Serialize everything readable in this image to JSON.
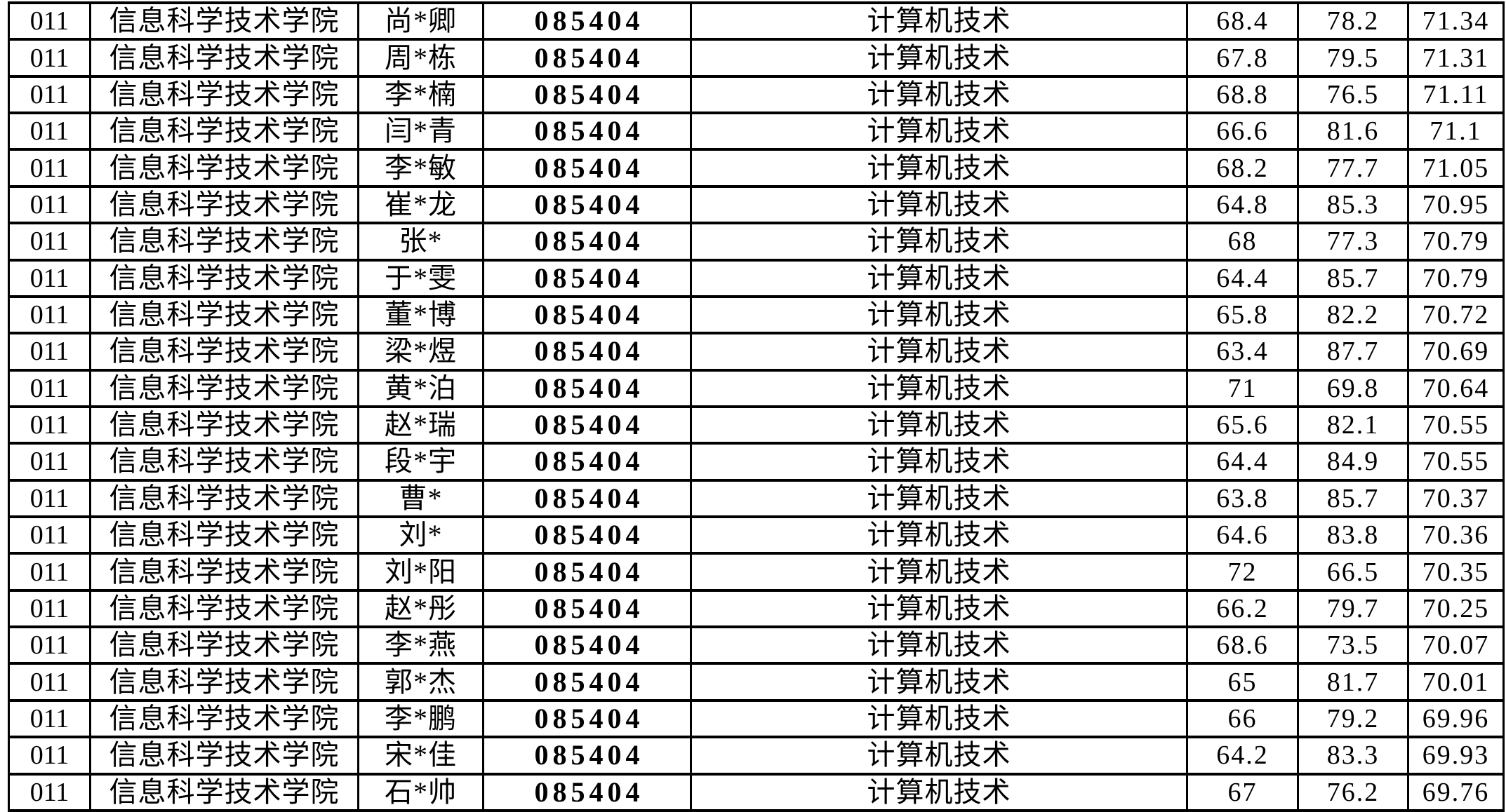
{
  "table": {
    "rows": [
      [
        "011",
        "信息科学技术学院",
        "尚*卿",
        "085404",
        "计算机技术",
        "68.4",
        "78.2",
        "71.34"
      ],
      [
        "011",
        "信息科学技术学院",
        "周*栋",
        "085404",
        "计算机技术",
        "67.8",
        "79.5",
        "71.31"
      ],
      [
        "011",
        "信息科学技术学院",
        "李*楠",
        "085404",
        "计算机技术",
        "68.8",
        "76.5",
        "71.11"
      ],
      [
        "011",
        "信息科学技术学院",
        "闫*青",
        "085404",
        "计算机技术",
        "66.6",
        "81.6",
        "71.1"
      ],
      [
        "011",
        "信息科学技术学院",
        "李*敏",
        "085404",
        "计算机技术",
        "68.2",
        "77.7",
        "71.05"
      ],
      [
        "011",
        "信息科学技术学院",
        "崔*龙",
        "085404",
        "计算机技术",
        "64.8",
        "85.3",
        "70.95"
      ],
      [
        "011",
        "信息科学技术学院",
        "张*",
        "085404",
        "计算机技术",
        "68",
        "77.3",
        "70.79"
      ],
      [
        "011",
        "信息科学技术学院",
        "于*雯",
        "085404",
        "计算机技术",
        "64.4",
        "85.7",
        "70.79"
      ],
      [
        "011",
        "信息科学技术学院",
        "董*博",
        "085404",
        "计算机技术",
        "65.8",
        "82.2",
        "70.72"
      ],
      [
        "011",
        "信息科学技术学院",
        "梁*煜",
        "085404",
        "计算机技术",
        "63.4",
        "87.7",
        "70.69"
      ],
      [
        "011",
        "信息科学技术学院",
        "黄*泊",
        "085404",
        "计算机技术",
        "71",
        "69.8",
        "70.64"
      ],
      [
        "011",
        "信息科学技术学院",
        "赵*瑞",
        "085404",
        "计算机技术",
        "65.6",
        "82.1",
        "70.55"
      ],
      [
        "011",
        "信息科学技术学院",
        "段*宇",
        "085404",
        "计算机技术",
        "64.4",
        "84.9",
        "70.55"
      ],
      [
        "011",
        "信息科学技术学院",
        "曹*",
        "085404",
        "计算机技术",
        "63.8",
        "85.7",
        "70.37"
      ],
      [
        "011",
        "信息科学技术学院",
        "刘*",
        "085404",
        "计算机技术",
        "64.6",
        "83.8",
        "70.36"
      ],
      [
        "011",
        "信息科学技术学院",
        "刘*阳",
        "085404",
        "计算机技术",
        "72",
        "66.5",
        "70.35"
      ],
      [
        "011",
        "信息科学技术学院",
        "赵*彤",
        "085404",
        "计算机技术",
        "66.2",
        "79.7",
        "70.25"
      ],
      [
        "011",
        "信息科学技术学院",
        "李*燕",
        "085404",
        "计算机技术",
        "68.6",
        "73.5",
        "70.07"
      ],
      [
        "011",
        "信息科学技术学院",
        "郭*杰",
        "085404",
        "计算机技术",
        "65",
        "81.7",
        "70.01"
      ],
      [
        "011",
        "信息科学技术学院",
        "李*鹏",
        "085404",
        "计算机技术",
        "66",
        "79.2",
        "69.96"
      ],
      [
        "011",
        "信息科学技术学院",
        "宋*佳",
        "085404",
        "计算机技术",
        "64.2",
        "83.3",
        "69.93"
      ],
      [
        "011",
        "信息科学技术学院",
        "石*帅",
        "085404",
        "计算机技术",
        "67",
        "76.2",
        "69.76"
      ]
    ]
  }
}
